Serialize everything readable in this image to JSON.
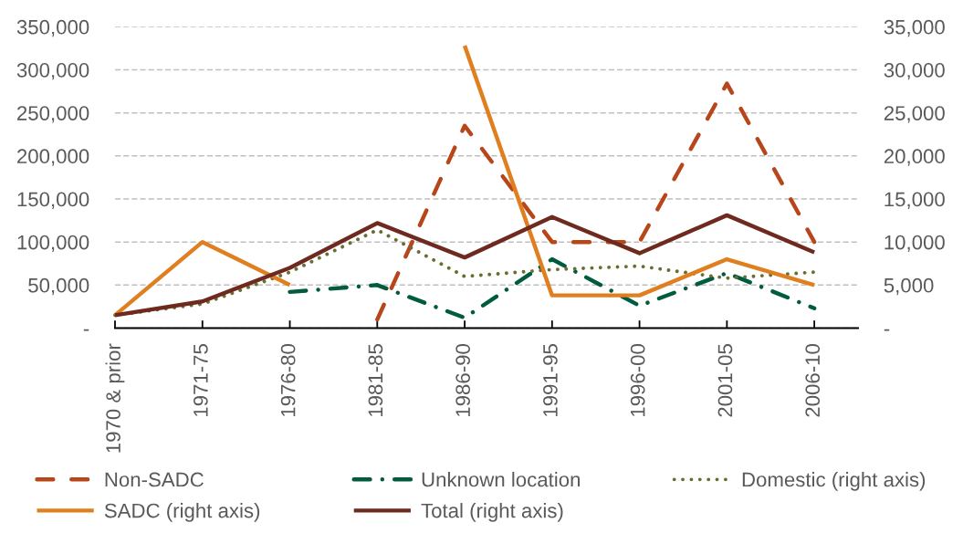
{
  "chart_data": {
    "type": "line",
    "categories": [
      "1970 & prior",
      "1971-75",
      "1976-80",
      "1981-85",
      "1986-90",
      "1991-95",
      "1996-00",
      "2001-05",
      "2006-10"
    ],
    "series": [
      {
        "name": "Non-SADC",
        "color": "#b7461a",
        "line_style": "dashed",
        "values": [
          null,
          null,
          null,
          10000,
          235000,
          100000,
          100000,
          284000,
          100000
        ]
      },
      {
        "name": "Unknown location",
        "color": "#005b3f",
        "line_style": "dashdot",
        "values": [
          null,
          null,
          42000,
          50000,
          12000,
          80000,
          26000,
          64000,
          23000
        ]
      },
      {
        "name": "Domestic (right axis)",
        "color": "#6a6d2f",
        "line_style": "dotted",
        "axis": "y2",
        "values": [
          1500,
          2800,
          6500,
          11400,
          6000,
          6800,
          7200,
          5800,
          6500
        ]
      },
      {
        "name": "SADC (right axis)",
        "color": "#e07f20",
        "line_style": "solid",
        "axis": "y2",
        "values": [
          1500,
          10000,
          5000,
          null,
          32800,
          3800,
          3800,
          8000,
          5000
        ]
      },
      {
        "name": "Total (right axis)",
        "color": "#6e2a1f",
        "line_style": "solid",
        "axis": "y2",
        "values": [
          1500,
          3100,
          7000,
          12200,
          8200,
          12900,
          8700,
          13100,
          8800
        ]
      }
    ],
    "ylim": [
      0,
      350000
    ],
    "yticks": [
      {
        "value": 0,
        "label": "-"
      },
      {
        "value": 50000,
        "label": "50,000"
      },
      {
        "value": 100000,
        "label": "100,000"
      },
      {
        "value": 150000,
        "label": "150,000"
      },
      {
        "value": 200000,
        "label": "200,000"
      },
      {
        "value": 250000,
        "label": "250,000"
      },
      {
        "value": 300000,
        "label": "300,000"
      },
      {
        "value": 350000,
        "label": "350,000"
      }
    ],
    "y2lim": [
      0,
      35000
    ],
    "y2ticks": [
      {
        "value": 0,
        "label": "-"
      },
      {
        "value": 5000,
        "label": "5,000"
      },
      {
        "value": 10000,
        "label": "10,000"
      },
      {
        "value": 15000,
        "label": "15,000"
      },
      {
        "value": 20000,
        "label": "20,000"
      },
      {
        "value": 25000,
        "label": "25,000"
      },
      {
        "value": 30000,
        "label": "30,000"
      },
      {
        "value": 35000,
        "label": "35,000"
      }
    ],
    "grid": "y",
    "legend": "bottom"
  }
}
